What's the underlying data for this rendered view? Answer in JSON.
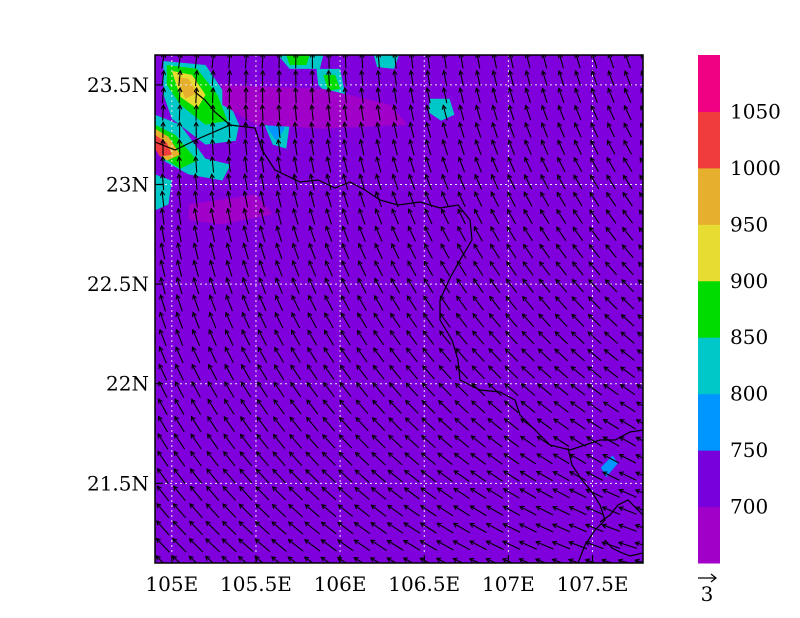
{
  "map": {
    "lon_range": [
      104.9,
      107.8
    ],
    "lat_range": [
      21.1,
      23.65
    ],
    "lon_ticks": [
      {
        "value": 105.0,
        "label": "105E"
      },
      {
        "value": 105.5,
        "label": "105.5E"
      },
      {
        "value": 106.0,
        "label": "106E"
      },
      {
        "value": 106.5,
        "label": "106.5E"
      },
      {
        "value": 107.0,
        "label": "107E"
      },
      {
        "value": 107.5,
        "label": "107.5E"
      }
    ],
    "lat_ticks": [
      {
        "value": 21.5,
        "label": "21.5N"
      },
      {
        "value": 22.0,
        "label": "22N"
      },
      {
        "value": 22.5,
        "label": "22.5N"
      },
      {
        "value": 23.0,
        "label": "23N"
      },
      {
        "value": 23.5,
        "label": "23.5N"
      }
    ],
    "gridlines": true,
    "background_fill": "#7f00dd",
    "vector_reference": {
      "label": "3"
    }
  },
  "colorbar": {
    "position": "right",
    "labels": [
      "700",
      "750",
      "800",
      "850",
      "900",
      "950",
      "1000",
      "1050"
    ],
    "colors": [
      "#a000c8",
      "#7800dc",
      "#0096ff",
      "#00c8c8",
      "#00dc00",
      "#e6dc32",
      "#e6af2d",
      "#f03c3c",
      "#f00082"
    ]
  },
  "highlights": [
    {
      "color": "#00c8c8",
      "points": [
        [
          104.95,
          23.62
        ],
        [
          105.2,
          23.6
        ],
        [
          105.32,
          23.45
        ],
        [
          105.4,
          23.3
        ],
        [
          105.38,
          23.22
        ],
        [
          105.2,
          23.2
        ],
        [
          105.0,
          23.33
        ],
        [
          104.95,
          23.45
        ]
      ]
    },
    {
      "color": "#00dc00",
      "points": [
        [
          104.97,
          23.6
        ],
        [
          105.15,
          23.58
        ],
        [
          105.27,
          23.45
        ],
        [
          105.33,
          23.32
        ],
        [
          105.2,
          23.3
        ],
        [
          105.05,
          23.4
        ],
        [
          104.97,
          23.5
        ]
      ]
    },
    {
      "color": "#e6dc32",
      "points": [
        [
          105.0,
          23.57
        ],
        [
          105.12,
          23.55
        ],
        [
          105.2,
          23.45
        ],
        [
          105.15,
          23.38
        ],
        [
          105.05,
          23.44
        ]
      ]
    },
    {
      "color": "#e6af2d",
      "points": [
        [
          105.03,
          23.54
        ],
        [
          105.1,
          23.53
        ],
        [
          105.15,
          23.46
        ],
        [
          105.08,
          23.43
        ]
      ]
    },
    {
      "color": "#00c8c8",
      "points": [
        [
          104.9,
          23.35
        ],
        [
          105.05,
          23.3
        ],
        [
          105.2,
          23.13
        ],
        [
          105.35,
          23.1
        ],
        [
          105.3,
          23.02
        ],
        [
          105.1,
          23.05
        ],
        [
          104.95,
          23.12
        ],
        [
          104.9,
          23.2
        ]
      ]
    },
    {
      "color": "#00dc00",
      "points": [
        [
          104.9,
          23.3
        ],
        [
          105.02,
          23.25
        ],
        [
          105.15,
          23.12
        ],
        [
          105.05,
          23.08
        ],
        [
          104.92,
          23.15
        ]
      ]
    },
    {
      "color": "#e6af2d",
      "points": [
        [
          104.9,
          23.28
        ],
        [
          104.98,
          23.24
        ],
        [
          105.05,
          23.15
        ],
        [
          104.97,
          23.12
        ],
        [
          104.9,
          23.18
        ]
      ]
    },
    {
      "color": "#f03c3c",
      "points": [
        [
          104.9,
          23.25
        ],
        [
          104.97,
          23.21
        ],
        [
          105.0,
          23.15
        ],
        [
          104.93,
          23.14
        ],
        [
          104.9,
          23.18
        ]
      ]
    },
    {
      "color": "#00c8c8",
      "points": [
        [
          104.9,
          23.05
        ],
        [
          105.0,
          23.02
        ],
        [
          104.98,
          22.9
        ],
        [
          104.9,
          22.87
        ]
      ]
    },
    {
      "color": "#00c8c8",
      "points": [
        [
          105.55,
          23.4
        ],
        [
          105.62,
          23.42
        ],
        [
          105.7,
          23.3
        ],
        [
          105.68,
          23.18
        ],
        [
          105.6,
          23.2
        ],
        [
          105.55,
          23.3
        ]
      ]
    },
    {
      "color": "#0096ff",
      "points": [
        [
          105.56,
          23.36
        ],
        [
          105.62,
          23.38
        ],
        [
          105.67,
          23.28
        ],
        [
          105.62,
          23.22
        ],
        [
          105.57,
          23.28
        ]
      ]
    },
    {
      "color": "#00c8c8",
      "points": [
        [
          105.63,
          23.65
        ],
        [
          105.9,
          23.65
        ],
        [
          105.88,
          23.58
        ],
        [
          105.7,
          23.58
        ]
      ]
    },
    {
      "color": "#00dc00",
      "points": [
        [
          105.68,
          23.65
        ],
        [
          105.82,
          23.65
        ],
        [
          105.8,
          23.6
        ],
        [
          105.7,
          23.6
        ]
      ]
    },
    {
      "color": "#00c8c8",
      "points": [
        [
          105.86,
          23.58
        ],
        [
          106.0,
          23.58
        ],
        [
          106.03,
          23.45
        ],
        [
          105.95,
          23.43
        ],
        [
          105.87,
          23.5
        ]
      ]
    },
    {
      "color": "#00dc00",
      "points": [
        [
          105.9,
          23.55
        ],
        [
          105.97,
          23.55
        ],
        [
          106.0,
          23.48
        ],
        [
          105.93,
          23.47
        ]
      ]
    },
    {
      "color": "#00c8c8",
      "points": [
        [
          106.2,
          23.65
        ],
        [
          106.35,
          23.65
        ],
        [
          106.32,
          23.58
        ],
        [
          106.22,
          23.59
        ]
      ]
    },
    {
      "color": "#00c8c8",
      "points": [
        [
          106.53,
          23.43
        ],
        [
          106.65,
          23.43
        ],
        [
          106.68,
          23.35
        ],
        [
          106.6,
          23.32
        ],
        [
          106.53,
          23.36
        ]
      ]
    },
    {
      "color": "#0096ff",
      "points": [
        [
          107.55,
          21.58
        ],
        [
          107.62,
          21.64
        ],
        [
          107.65,
          21.6
        ],
        [
          107.58,
          21.53
        ]
      ]
    },
    {
      "color": "#a000c8",
      "points": [
        [
          105.3,
          23.5
        ],
        [
          105.9,
          23.48
        ],
        [
          106.3,
          23.4
        ],
        [
          106.4,
          23.3
        ],
        [
          105.9,
          23.28
        ],
        [
          105.5,
          23.3
        ],
        [
          105.3,
          23.4
        ]
      ]
    },
    {
      "color": "#a000c8",
      "points": [
        [
          105.1,
          22.9
        ],
        [
          105.5,
          22.95
        ],
        [
          105.6,
          22.85
        ],
        [
          105.3,
          22.8
        ],
        [
          105.1,
          22.82
        ]
      ]
    }
  ]
}
